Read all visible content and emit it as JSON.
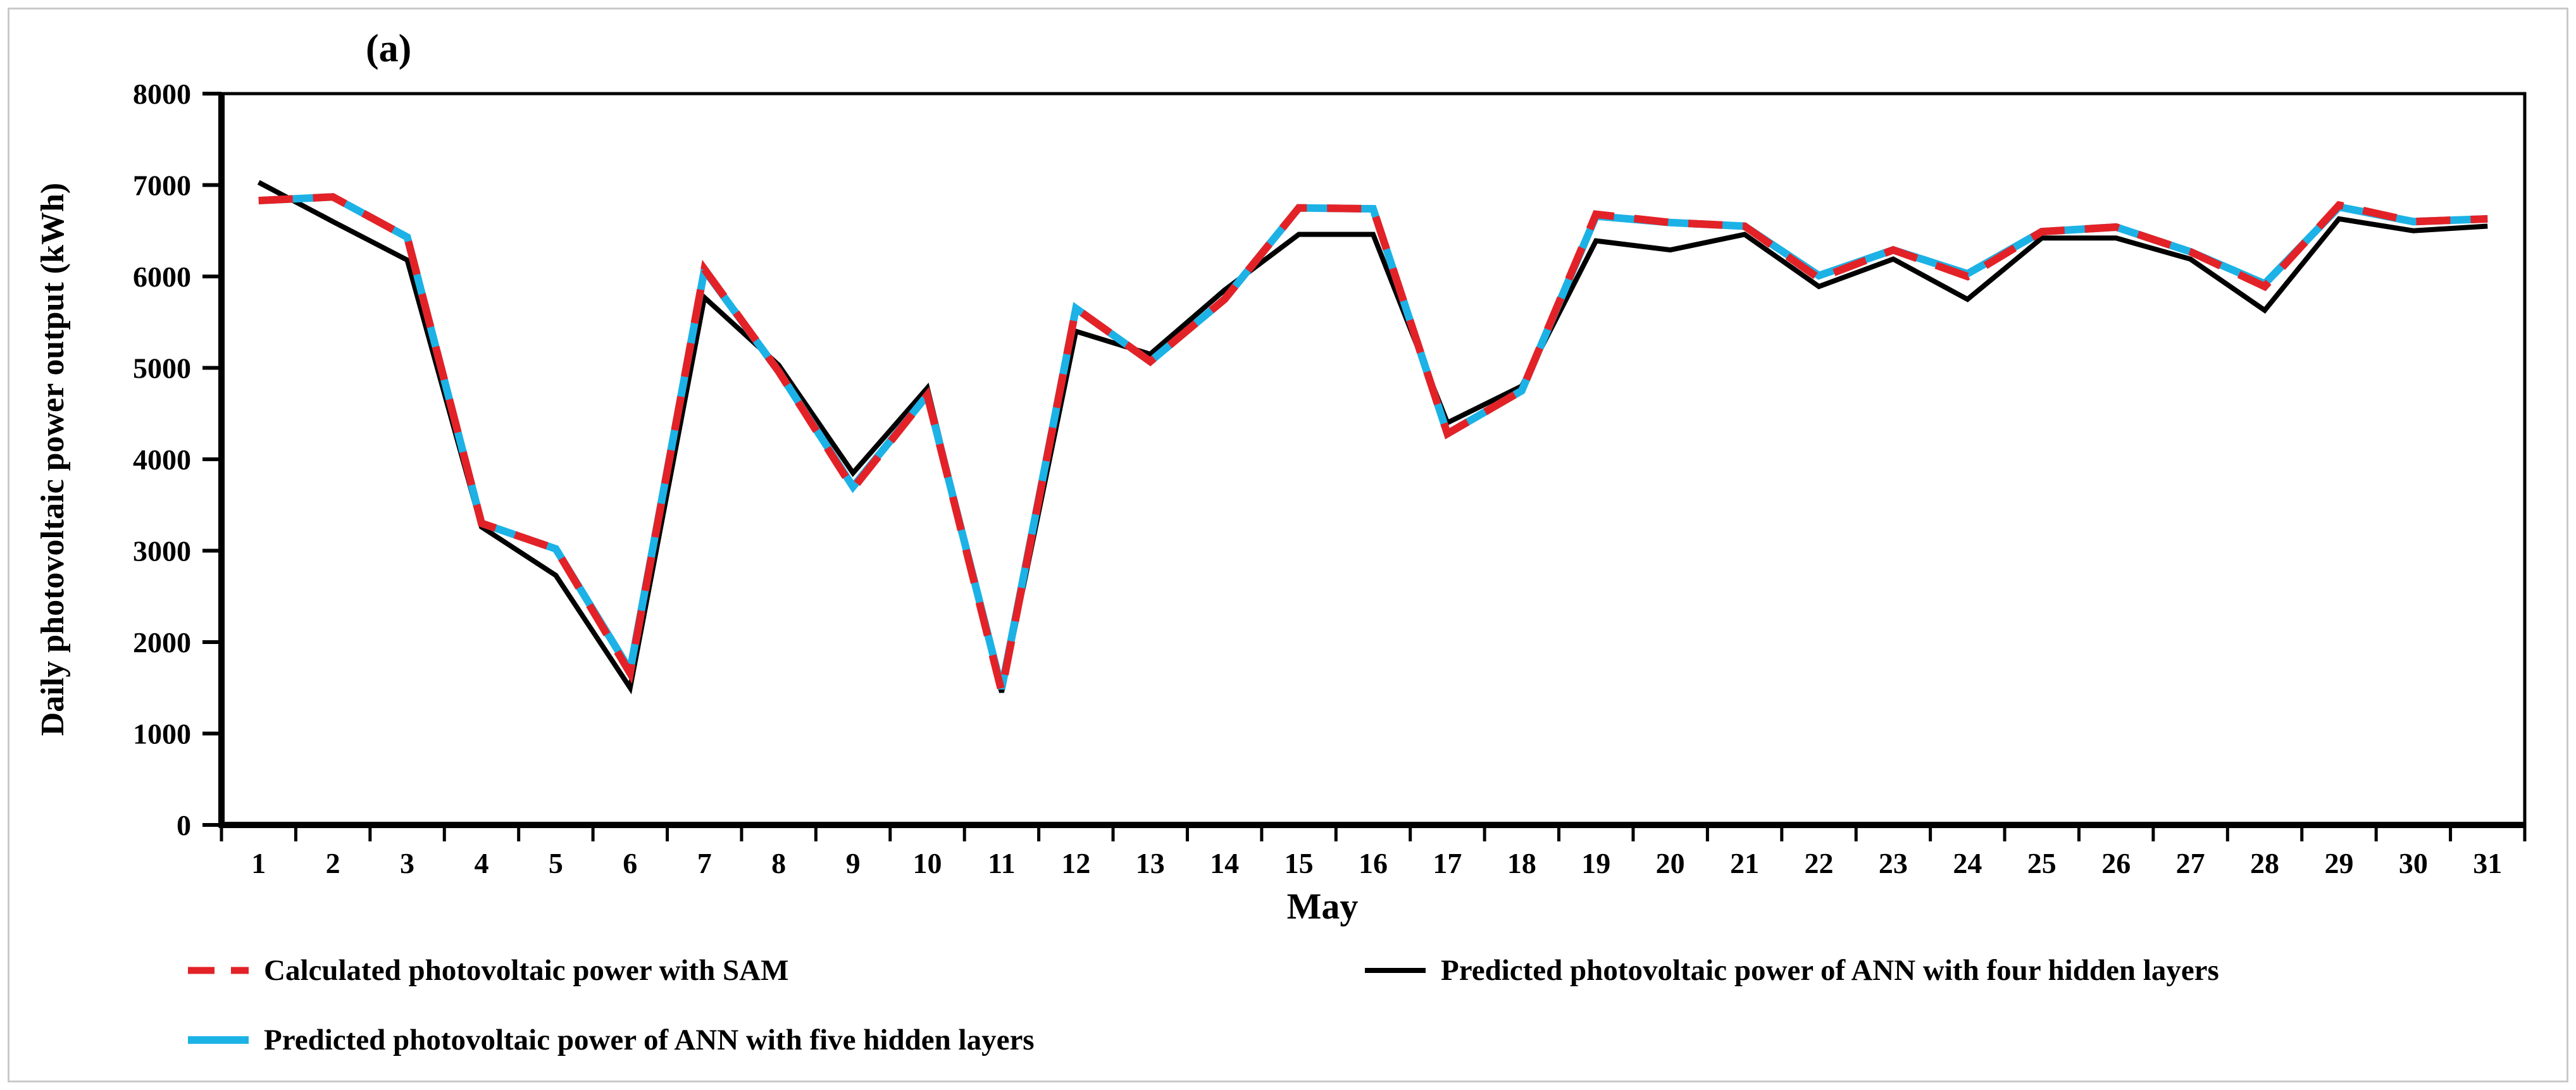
{
  "figure": {
    "panel_label": "(a)"
  },
  "chart_data": {
    "type": "line",
    "title": "",
    "xlabel": "May",
    "ylabel": "Daily photovoltaic power output (kWh)",
    "ylim": [
      0,
      8000
    ],
    "yticks": [
      0,
      1000,
      2000,
      3000,
      4000,
      5000,
      6000,
      7000,
      8000
    ],
    "categories": [
      1,
      2,
      3,
      4,
      5,
      6,
      7,
      8,
      9,
      10,
      11,
      12,
      13,
      14,
      15,
      16,
      17,
      18,
      19,
      20,
      21,
      22,
      23,
      24,
      25,
      26,
      27,
      28,
      29,
      30,
      31
    ],
    "grid": false,
    "legend_position": "bottom",
    "series": [
      {
        "name": "Calculated photovoltaic power with SAM",
        "color": "#e32227",
        "style": "dashed",
        "values": [
          6830,
          6870,
          6430,
          3300,
          3020,
          1660,
          6080,
          4960,
          3680,
          4700,
          1460,
          5650,
          5070,
          5750,
          6750,
          6740,
          4280,
          4750,
          6680,
          6590,
          6550,
          5980,
          6290,
          6000,
          6490,
          6540,
          6270,
          5890,
          6780,
          6600,
          6630
        ]
      },
      {
        "name": "Predicted photovoltaic power of ANN with four hidden layers",
        "color": "#000000",
        "style": "solid",
        "values": [
          7030,
          6600,
          6180,
          3260,
          2730,
          1500,
          5770,
          5030,
          3850,
          4780,
          1450,
          5400,
          5150,
          5850,
          6460,
          6460,
          4400,
          4800,
          6390,
          6290,
          6460,
          5890,
          6190,
          5750,
          6420,
          6420,
          6190,
          5630,
          6630,
          6500,
          6550
        ]
      },
      {
        "name": "Predicted photovoltaic power of ANN with five hidden layers",
        "color": "#1cb2e6",
        "style": "solid",
        "values": [
          6830,
          6870,
          6430,
          3300,
          3020,
          1690,
          6070,
          4960,
          3700,
          4700,
          1490,
          5650,
          5070,
          5750,
          6750,
          6740,
          4280,
          4750,
          6660,
          6590,
          6550,
          6010,
          6290,
          6030,
          6490,
          6540,
          6270,
          5920,
          6760,
          6600,
          6630
        ]
      }
    ]
  }
}
